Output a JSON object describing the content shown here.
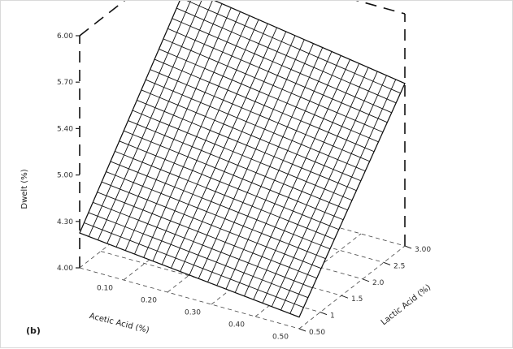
{
  "chart_data": {
    "type": "surface",
    "panel_label": "(b)",
    "zlabel": "Dwelt (%)",
    "xlabel": "Acetic Acid (%)",
    "ylabel": "Lactic Acid (%)",
    "z_ticks": [
      "4.00",
      "4.30",
      "5.00",
      "5.40",
      "5.70",
      "6.00"
    ],
    "x_ticks": [
      "0.10",
      "0.20",
      "0.30",
      "0.40",
      "0.50"
    ],
    "y_ticks": [
      "0.50",
      "1",
      "1.5",
      "2.0",
      "2.5",
      "3.00"
    ],
    "x": [
      0.1,
      0.5
    ],
    "y": [
      0.5,
      3.0
    ],
    "zlim": [
      4.0,
      6.0
    ],
    "z_corners": {
      "x_min_y_min": 4.3,
      "x_max_y_min": 4.1,
      "x_min_y_max": 5.7,
      "x_max_y_max": 5.4
    },
    "mesh_divisions": 24,
    "grid": true
  }
}
